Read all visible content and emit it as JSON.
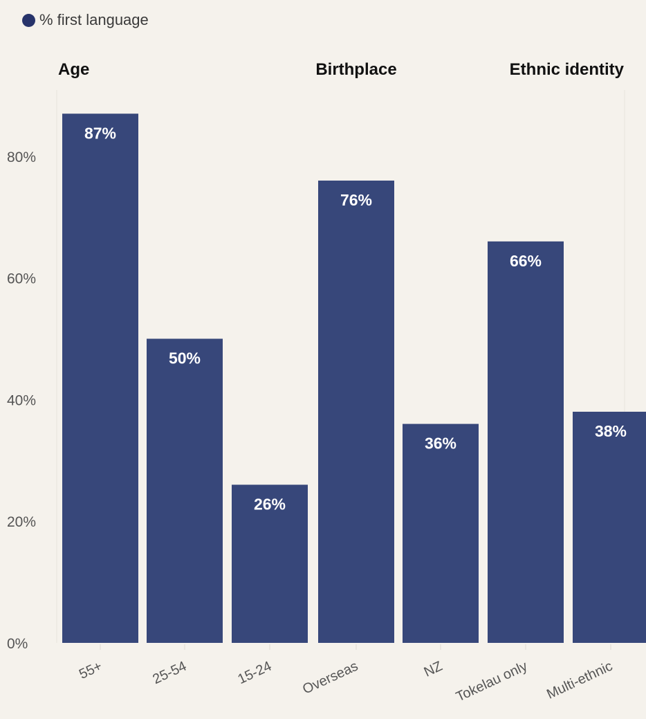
{
  "legend": {
    "label": "% first language",
    "color": "#27336a"
  },
  "colors": {
    "bar": "#37477a",
    "background": "#f5f2ec"
  },
  "chart_data": {
    "type": "bar",
    "y_ticks": [
      0,
      20,
      40,
      60,
      80
    ],
    "y_tick_labels": [
      "0%",
      "20%",
      "40%",
      "60%",
      "80%"
    ],
    "ylim": [
      0,
      90
    ],
    "groups": [
      {
        "title": "Age",
        "categories": [
          "55+",
          "25-54",
          "15-24"
        ],
        "values": [
          87,
          50,
          26
        ],
        "labels": [
          "87%",
          "50%",
          "26%"
        ]
      },
      {
        "title": "Birthplace",
        "categories": [
          "Overseas",
          "NZ"
        ],
        "values": [
          76,
          36
        ],
        "labels": [
          "76%",
          "36%"
        ]
      },
      {
        "title": "Ethnic identity",
        "categories": [
          "Tokelau only",
          "Multi-ethnic"
        ],
        "values": [
          66,
          38
        ],
        "labels": [
          "66%",
          "38%"
        ]
      }
    ]
  }
}
